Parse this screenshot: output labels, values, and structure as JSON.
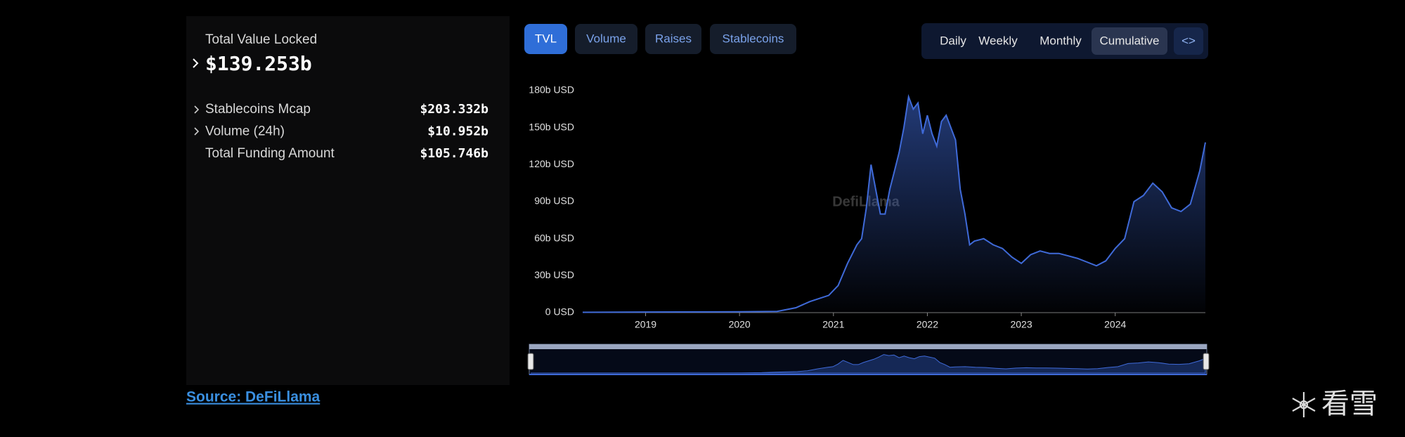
{
  "headline": {
    "label": "Total Value Locked",
    "value": "$139.253b"
  },
  "stats": [
    {
      "label": "Stablecoins Mcap",
      "value": "$203.332b"
    },
    {
      "label": "Volume (24h)",
      "value": "$10.952b"
    },
    {
      "label": "Total Funding Amount",
      "value": "$105.746b"
    }
  ],
  "tabs": [
    "TVL",
    "Volume",
    "Raises",
    "Stablecoins"
  ],
  "periods": [
    "Daily",
    "Weekly",
    "Monthly",
    "Cumulative"
  ],
  "embed": "<>",
  "source": "Source: DeFiLlama",
  "watermark": "看雪",
  "chart_data": {
    "type": "area",
    "watermark": "DefiLlama",
    "color": "#3f6ad8",
    "x": [
      2018.33,
      2019,
      2020,
      2020.4,
      2020.6,
      2020.75,
      2020.95,
      2021.05,
      2021.15,
      2021.25,
      2021.3,
      2021.35,
      2021.4,
      2021.45,
      2021.5,
      2021.55,
      2021.6,
      2021.65,
      2021.7,
      2021.75,
      2021.8,
      2021.85,
      2021.9,
      2021.95,
      2022.0,
      2022.05,
      2022.1,
      2022.15,
      2022.2,
      2022.3,
      2022.35,
      2022.4,
      2022.45,
      2022.5,
      2022.6,
      2022.7,
      2022.8,
      2022.9,
      2023.0,
      2023.1,
      2023.2,
      2023.3,
      2023.4,
      2023.5,
      2023.6,
      2023.7,
      2023.8,
      2023.9,
      2024.0,
      2024.1,
      2024.2,
      2024.3,
      2024.4,
      2024.5,
      2024.6,
      2024.7,
      2024.8,
      2024.9,
      2024.96
    ],
    "values": [
      0.3,
      0.5,
      0.7,
      1,
      4,
      9,
      14,
      22,
      40,
      55,
      60,
      85,
      120,
      100,
      80,
      80,
      100,
      115,
      130,
      150,
      175,
      165,
      170,
      145,
      160,
      145,
      135,
      155,
      160,
      140,
      100,
      80,
      55,
      58,
      60,
      55,
      52,
      45,
      40,
      47,
      50,
      48,
      48,
      46,
      44,
      41,
      38,
      42,
      52,
      60,
      90,
      95,
      105,
      98,
      85,
      82,
      88,
      115,
      138
    ],
    "xlim": [
      2018.33,
      2024.96
    ],
    "xticks": [
      2019,
      2020,
      2021,
      2022,
      2023,
      2024
    ],
    "ylim": [
      0,
      180
    ],
    "yticks": [
      {
        "value": 0,
        "label": "0 USD"
      },
      {
        "value": 30,
        "label": "30b USD"
      },
      {
        "value": 60,
        "label": "60b USD"
      },
      {
        "value": 90,
        "label": "90b USD"
      },
      {
        "value": 120,
        "label": "120b USD"
      },
      {
        "value": 150,
        "label": "150b USD"
      },
      {
        "value": 180,
        "label": "180b USD"
      }
    ]
  }
}
